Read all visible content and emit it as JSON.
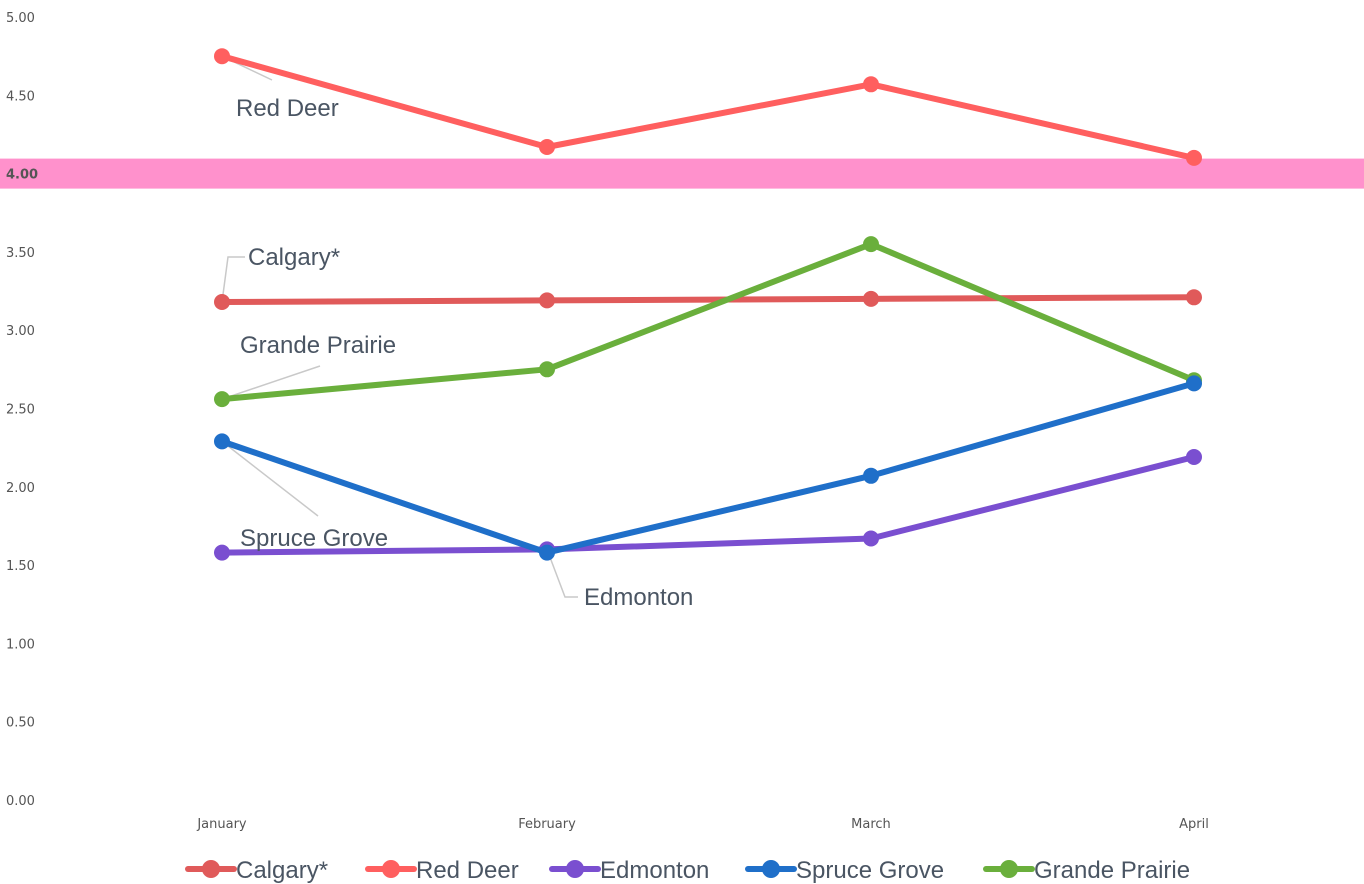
{
  "chart_data": {
    "type": "line",
    "categories": [
      "January",
      "February",
      "March",
      "April"
    ],
    "ylim": [
      0,
      5
    ],
    "yticks": [
      "0.00",
      "0.50",
      "1.00",
      "1.50",
      "2.00",
      "2.50",
      "3.00",
      "3.50",
      "4.00",
      "4.50",
      "5.00"
    ],
    "grid": false,
    "legend_position": "bottom",
    "highlight": {
      "value": 4.0,
      "label": "4.00",
      "color": "#ff7ec3"
    },
    "series": [
      {
        "name": "Calgary*",
        "color": "#e05a5a",
        "values": [
          3.18,
          3.19,
          3.2,
          3.21
        ]
      },
      {
        "name": "Red Deer",
        "color": "#ff5f5f",
        "values": [
          4.75,
          4.17,
          4.57,
          4.1
        ]
      },
      {
        "name": "Edmonton",
        "color": "#7a4fd0",
        "values": [
          1.58,
          1.6,
          1.67,
          2.19
        ]
      },
      {
        "name": "Spruce Grove",
        "color": "#1f6fc9",
        "values": [
          2.29,
          1.58,
          2.07,
          2.66
        ]
      },
      {
        "name": "Grande Prairie",
        "color": "#6aaf3c",
        "values": [
          2.56,
          2.75,
          3.55,
          2.68
        ]
      }
    ],
    "annotations": [
      {
        "text": "Red Deer",
        "series": "Red Deer"
      },
      {
        "text": "Calgary*",
        "series": "Calgary*"
      },
      {
        "text": "Grande Prairie",
        "series": "Grande Prairie"
      },
      {
        "text": "Spruce Grove",
        "series": "Spruce Grove"
      },
      {
        "text": "Edmonton",
        "series": "Edmonton"
      }
    ]
  }
}
